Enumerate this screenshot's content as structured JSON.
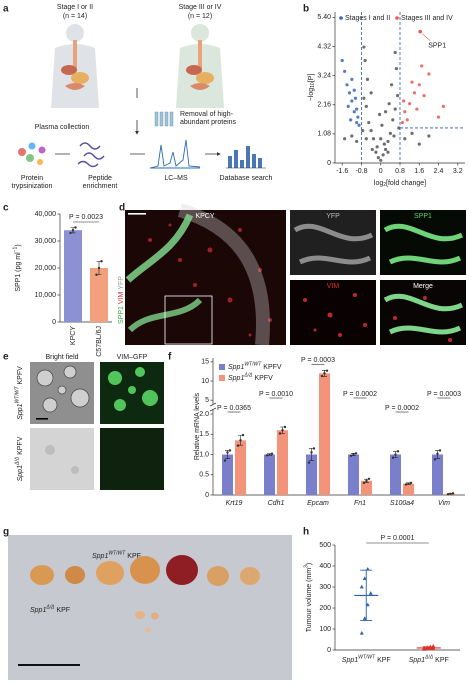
{
  "panel_labels": [
    "a",
    "b",
    "c",
    "d",
    "e",
    "f",
    "g",
    "h"
  ],
  "panel_a": {
    "groups": [
      {
        "label": "Stage I or II",
        "n": "(n = 14)"
      },
      {
        "label": "Stage III or IV",
        "n": "(n = 12)"
      }
    ],
    "steps": [
      {
        "lines": [
          "Plasma collection"
        ]
      },
      {
        "lines": [
          "Removal of high-",
          "abundant proteins"
        ]
      },
      {
        "lines": [
          "Protein",
          "trypsinization"
        ]
      },
      {
        "lines": [
          "Peptide",
          "enrichment"
        ]
      },
      {
        "lines": [
          "LC–MS"
        ]
      },
      {
        "lines": [
          "Database search"
        ]
      }
    ]
  },
  "panel_d": {
    "main": "KPCY",
    "tiles": [
      "YFP",
      "SPP1",
      "VIM",
      "Merge"
    ],
    "side": [
      "SPP1",
      "VIM",
      "YFP"
    ]
  },
  "panel_e": {
    "columns": [
      "Bright field",
      "VIM–GFP"
    ],
    "rows": [
      {
        "gene": "Spp1",
        "genotype": "WT/WT",
        "strain": "KPFV"
      },
      {
        "gene": "Spp1",
        "genotype": "Δ/Δ",
        "strain": "KPFV"
      }
    ]
  },
  "panel_g": {
    "labels": [
      {
        "gene": "Spp1",
        "genotype": "WT/WT",
        "strain": "KPF"
      },
      {
        "gene": "Spp1",
        "genotype": "Δ/Δ",
        "strain": "KPF"
      }
    ]
  },
  "chart_data": [
    {
      "type": "scatter",
      "xlabel": {
        "main": "log",
        "sub": "2",
        "rest": "[fold change]"
      },
      "ylabel": {
        "main": "−log",
        "sub": "10",
        "rest": "[P]"
      },
      "xlim": [
        -1.9,
        3.5
      ],
      "ylim": [
        0,
        5.6
      ],
      "xticks": [
        -1.6,
        -0.8,
        0,
        0.8,
        1.6,
        2.4,
        3.2
      ],
      "yticks": [
        0,
        1.08,
        2.16,
        3.24,
        4.32,
        {
          "value": 5.4,
          "label": "5.40"
        }
      ],
      "thresholds_x": [
        -0.8,
        0.8
      ],
      "threshold_y": 1.3,
      "threshold_color": "#2a55b0",
      "legend": "top-left",
      "series": [
        {
          "color": "#555555",
          "x": [
            0,
            0.1,
            -0.1,
            0.2,
            -0.2,
            0.3,
            -0.3,
            0.4,
            -0.4,
            0.5,
            -0.5,
            0.6,
            -0.6,
            0.7,
            -0.7,
            0.45,
            -0.55,
            0.65,
            -0.65,
            0.3,
            -0.35,
            0.15,
            -0.15,
            0.55,
            -0.6,
            0.75,
            -0.75,
            1.0,
            -1.0,
            1.3,
            -1.2,
            1.6,
            -1.5,
            2.0,
            0.0,
            0.05,
            -0.05,
            0.35,
            -0.4,
            0.6,
            -0.7,
            0.2
          ],
          "values": [
            0.1,
            0.3,
            0.2,
            0.5,
            0.4,
            0.8,
            0.9,
            1.1,
            1.2,
            1.6,
            1.5,
            2.0,
            2.1,
            2.5,
            2.4,
            2.9,
            3.1,
            3.5,
            3.8,
            0.4,
            0.5,
            0.7,
            0.6,
            1.0,
            0.9,
            1.3,
            1.2,
            0.9,
            0.8,
            1.1,
            1.0,
            0.7,
            0.9,
            1.0,
            0.9,
            1.4,
            1.8,
            2.2,
            2.6,
            4.1,
            4.3,
            1.9
          ]
        },
        {
          "name": "Stages I and II",
          "color": "#3a64b8",
          "x": [
            -1.0,
            -1.1,
            -1.2,
            -0.9,
            -1.3,
            -1.0,
            -1.4,
            -1.5,
            -1.1,
            -0.95,
            -1.25,
            -1.35,
            -1.6,
            -1.2,
            -1.05
          ],
          "values": [
            1.5,
            1.9,
            2.3,
            1.4,
            2.6,
            2.0,
            2.9,
            3.4,
            2.7,
            1.7,
            1.6,
            2.1,
            3.8,
            3.1,
            2.4
          ]
        },
        {
          "name": "Stages III and IV",
          "color": "#e8574a",
          "x": [
            0.9,
            1.0,
            1.2,
            1.4,
            1.1,
            1.6,
            1.3,
            1.8,
            2.0,
            1.5,
            0.95,
            2.4,
            1.7,
            2.6
          ],
          "values": [
            1.5,
            1.9,
            2.2,
            2.6,
            1.6,
            2.9,
            3.0,
            2.5,
            3.3,
            2.0,
            2.3,
            1.7,
            3.6,
            2.1
          ]
        }
      ],
      "highlight": {
        "label": "SPP1",
        "x": 1.64,
        "y": 4.87,
        "color": "#e8574a"
      }
    },
    {
      "type": "bar",
      "ylabel": {
        "main": "SPP1 (pg ml",
        "sup": "−1",
        "rest": ")"
      },
      "categories": [
        "KPCY",
        "C57BL/6J"
      ],
      "rotate_labels": true,
      "values": [
        34000,
        20000
      ],
      "errors": [
        1000,
        2500
      ],
      "points": [
        [
          33000,
          34000,
          35000
        ],
        [
          17500,
          20000,
          22500
        ]
      ],
      "colors": [
        "#8c91d3",
        "#f2a07e"
      ],
      "ylim": [
        0,
        40000
      ],
      "yticks": [
        0,
        {
          "value": 10000,
          "label": "10,000"
        },
        {
          "value": 20000,
          "label": "20,000"
        },
        {
          "value": 30000,
          "label": "30,000"
        },
        {
          "value": 40000,
          "label": "40,000"
        }
      ],
      "annotations": [
        "P = 0.0023"
      ]
    },
    {
      "type": "bar",
      "ylabel": {
        "main": "Relative mRNA levels"
      },
      "categories": [
        "Krt19",
        "Cdh1",
        "Epcam",
        "Fn1",
        "S100a4",
        "Vim"
      ],
      "legend": "top-left",
      "series": [
        {
          "name": {
            "gene": "Spp1",
            "genotype": "WT/WT",
            "strain": "KPFV"
          },
          "color": "#7a7fcc",
          "values": [
            1.0,
            1.0,
            1.0,
            1.0,
            1.0,
            1.0
          ],
          "errors": [
            0.1,
            0.02,
            0.15,
            0.03,
            0.08,
            0.1
          ],
          "points": [
            [
              0.85,
              1.05,
              1.1
            ],
            [
              0.98,
              1.0,
              1.02
            ],
            [
              0.8,
              1.05,
              1.15
            ],
            [
              0.97,
              1.0,
              1.03
            ],
            [
              0.92,
              1.0,
              1.08
            ],
            [
              0.88,
              1.02,
              1.1
            ]
          ]
        },
        {
          "name": {
            "gene": "Spp1",
            "genotype": "Δ/Δ",
            "strain": "KPFV"
          },
          "color": "#f2937a",
          "values": [
            1.35,
            1.6,
            12.0,
            0.35,
            0.28,
            0.03
          ],
          "errors": [
            0.12,
            0.08,
            0.8,
            0.04,
            0.02,
            0.01
          ],
          "points": [
            [
              1.22,
              1.35,
              1.48
            ],
            [
              1.52,
              1.6,
              1.68
            ],
            [
              11.3,
              12.0,
              12.7
            ],
            [
              0.3,
              0.35,
              0.4
            ],
            [
              0.26,
              0.28,
              0.3
            ],
            [
              0.02,
              0.03,
              0.04
            ]
          ]
        }
      ],
      "ylim": [
        0,
        16
      ],
      "ybreak": [
        2.1,
        4
      ],
      "yticks": [
        0,
        0.5,
        {
          "value": 1,
          "label": "1.0"
        },
        1.5,
        {
          "value": 2,
          "label": "2.0"
        },
        5,
        10,
        15
      ],
      "annotations": [
        "P = 0.0365",
        "P = 0.0010",
        "P = 0.0003",
        "P = 0.0002",
        "P = 0.0002",
        "P = 0.0003"
      ]
    },
    {
      "type": "strip",
      "ylabel": {
        "main": "Tumour volume (mm",
        "sup": "3",
        "rest": ")"
      },
      "categories": [
        {
          "gene": "Spp1",
          "genotype": "WT/WT",
          "strain": "KPF"
        },
        {
          "gene": "Spp1",
          "genotype": "Δ/Δ",
          "strain": "KPF"
        }
      ],
      "points": [
        [
          80,
          150,
          215,
          270,
          300,
          340,
          385
        ],
        [
          3,
          5,
          7,
          8,
          10,
          12,
          15,
          18
        ]
      ],
      "means": [
        260,
        10
      ],
      "sd": [
        120,
        5
      ],
      "colors": [
        "#2b5fb4",
        "#e0302a"
      ],
      "ylim": [
        0,
        500
      ],
      "yticks": [
        0,
        100,
        200,
        300,
        400,
        500
      ],
      "annotations": [
        "P = 0.0001"
      ]
    }
  ]
}
